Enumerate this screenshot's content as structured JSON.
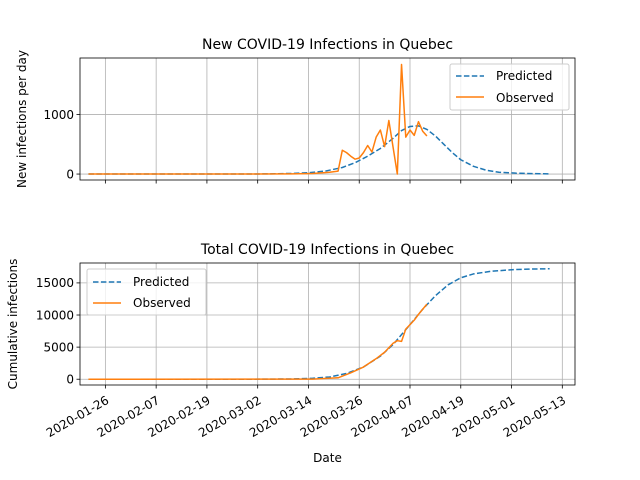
{
  "chart_data": [
    {
      "type": "line",
      "title": "New COVID-19 Infections in Quebec",
      "xlabel": "",
      "ylabel": "New infections per day",
      "xlim": [
        "2020-01-20",
        "2020-05-16"
      ],
      "ylim": [
        -100,
        1950
      ],
      "yticks": [
        0,
        1000
      ],
      "grid": true,
      "legend_position": "top-right",
      "series": [
        {
          "name": "Predicted",
          "color": "#1f77b4",
          "style": "dashed",
          "points": [
            [
              "2020-01-22",
              0
            ],
            [
              "2020-02-01",
              0
            ],
            [
              "2020-02-10",
              0
            ],
            [
              "2020-02-20",
              0
            ],
            [
              "2020-03-01",
              1
            ],
            [
              "2020-03-05",
              3
            ],
            [
              "2020-03-10",
              10
            ],
            [
              "2020-03-14",
              22
            ],
            [
              "2020-03-18",
              50
            ],
            [
              "2020-03-22",
              110
            ],
            [
              "2020-03-25",
              190
            ],
            [
              "2020-03-28",
              300
            ],
            [
              "2020-03-31",
              430
            ],
            [
              "2020-04-03",
              600
            ],
            [
              "2020-04-05",
              730
            ],
            [
              "2020-04-07",
              800
            ],
            [
              "2020-04-09",
              810
            ],
            [
              "2020-04-11",
              750
            ],
            [
              "2020-04-13",
              640
            ],
            [
              "2020-04-15",
              500
            ],
            [
              "2020-04-17",
              360
            ],
            [
              "2020-04-19",
              240
            ],
            [
              "2020-04-22",
              130
            ],
            [
              "2020-04-25",
              65
            ],
            [
              "2020-04-28",
              30
            ],
            [
              "2020-05-02",
              15
            ],
            [
              "2020-05-06",
              7
            ],
            [
              "2020-05-10",
              2
            ]
          ]
        },
        {
          "name": "Observed",
          "color": "#ff7f0e",
          "style": "solid",
          "points": [
            [
              "2020-01-22",
              0
            ],
            [
              "2020-03-01",
              0
            ],
            [
              "2020-03-10",
              2
            ],
            [
              "2020-03-15",
              10
            ],
            [
              "2020-03-19",
              30
            ],
            [
              "2020-03-21",
              50
            ],
            [
              "2020-03-22",
              400
            ],
            [
              "2020-03-23",
              360
            ],
            [
              "2020-03-24",
              300
            ],
            [
              "2020-03-25",
              250
            ],
            [
              "2020-03-26",
              270
            ],
            [
              "2020-03-27",
              360
            ],
            [
              "2020-03-28",
              480
            ],
            [
              "2020-03-29",
              370
            ],
            [
              "2020-03-30",
              620
            ],
            [
              "2020-03-31",
              740
            ],
            [
              "2020-04-01",
              460
            ],
            [
              "2020-04-02",
              900
            ],
            [
              "2020-04-04",
              0
            ],
            [
              "2020-04-05",
              1840
            ],
            [
              "2020-04-06",
              620
            ],
            [
              "2020-04-07",
              740
            ],
            [
              "2020-04-08",
              650
            ],
            [
              "2020-04-09",
              880
            ],
            [
              "2020-04-10",
              720
            ],
            [
              "2020-04-11",
              640
            ]
          ]
        }
      ]
    },
    {
      "type": "line",
      "title": "Total COVID-19 Infections in Quebec",
      "xlabel": "Date",
      "ylabel": "Cumulative infections",
      "xlim": [
        "2020-01-20",
        "2020-05-16"
      ],
      "ylim": [
        -900,
        18100
      ],
      "yticks": [
        0,
        5000,
        10000,
        15000
      ],
      "xticks": [
        "2020-01-26",
        "2020-02-07",
        "2020-02-19",
        "2020-03-02",
        "2020-03-14",
        "2020-03-26",
        "2020-04-07",
        "2020-04-19",
        "2020-05-01",
        "2020-05-13"
      ],
      "grid": true,
      "legend_position": "top-left",
      "series": [
        {
          "name": "Predicted",
          "color": "#1f77b4",
          "style": "dashed",
          "points": [
            [
              "2020-01-22",
              0
            ],
            [
              "2020-03-01",
              0
            ],
            [
              "2020-03-10",
              40
            ],
            [
              "2020-03-15",
              150
            ],
            [
              "2020-03-19",
              350
            ],
            [
              "2020-03-23",
              900
            ],
            [
              "2020-03-27",
              1900
            ],
            [
              "2020-03-31",
              3600
            ],
            [
              "2020-04-03",
              5400
            ],
            [
              "2020-04-07",
              8500
            ],
            [
              "2020-04-10",
              10900
            ],
            [
              "2020-04-13",
              13000
            ],
            [
              "2020-04-16",
              14700
            ],
            [
              "2020-04-19",
              15800
            ],
            [
              "2020-04-22",
              16400
            ],
            [
              "2020-04-26",
              16800
            ],
            [
              "2020-05-01",
              17050
            ],
            [
              "2020-05-05",
              17150
            ],
            [
              "2020-05-10",
              17200
            ]
          ]
        },
        {
          "name": "Observed",
          "color": "#ff7f0e",
          "style": "solid",
          "points": [
            [
              "2020-01-22",
              0
            ],
            [
              "2020-03-15",
              20
            ],
            [
              "2020-03-21",
              220
            ],
            [
              "2020-03-24",
              1000
            ],
            [
              "2020-03-27",
              1900
            ],
            [
              "2020-03-30",
              3200
            ],
            [
              "2020-04-01",
              4200
            ],
            [
              "2020-04-03",
              5600
            ],
            [
              "2020-04-04",
              6000
            ],
            [
              "2020-04-05",
              5900
            ],
            [
              "2020-04-06",
              7800
            ],
            [
              "2020-04-08",
              9200
            ],
            [
              "2020-04-09",
              10100
            ],
            [
              "2020-04-11",
              11700
            ]
          ]
        }
      ]
    }
  ]
}
